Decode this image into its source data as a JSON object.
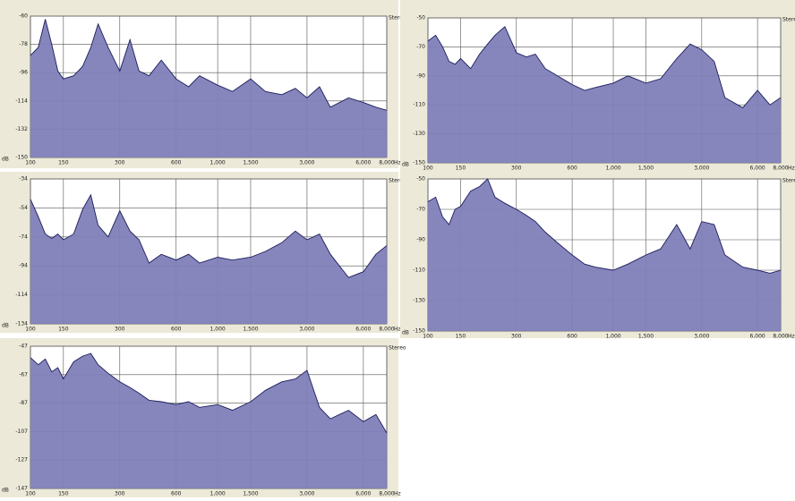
{
  "chart_data": [
    {
      "type": "area",
      "log_x": true,
      "grid": true,
      "color": "#7f80b9",
      "line_color": "#1c1c5c",
      "channel_label": "Stereo",
      "x_unit": "Hz",
      "y_unit": "dB",
      "x": [
        100,
        110,
        120,
        130,
        140,
        150,
        170,
        190,
        210,
        230,
        260,
        300,
        340,
        380,
        430,
        500,
        600,
        700,
        800,
        1000,
        1200,
        1500,
        1800,
        2200,
        2600,
        3000,
        3500,
        4000,
        5000,
        6000,
        7000,
        8000
      ],
      "values": [
        -85,
        -80,
        -62,
        -78,
        -95,
        -100,
        -98,
        -92,
        -80,
        -65,
        -80,
        -95,
        -75,
        -95,
        -98,
        -88,
        -100,
        -105,
        -98,
        -104,
        -108,
        -100,
        -108,
        -110,
        -106,
        -112,
        -105,
        -118,
        -112,
        -115,
        -118,
        -120
      ],
      "xlim": [
        100,
        8000
      ],
      "xticks": [
        100,
        150,
        300,
        600,
        {
          "value": 1000,
          "label": "1,000"
        },
        {
          "value": 1500,
          "label": "1,500"
        },
        {
          "value": 3000,
          "label": "3,000"
        },
        {
          "value": 6000,
          "label": "6,000"
        },
        {
          "value": 8000,
          "label": "8,000"
        }
      ],
      "ylim": [
        -150,
        -60
      ],
      "yticks": [
        -60,
        -78,
        -96,
        -114,
        -132,
        -150
      ]
    },
    {
      "type": "area",
      "log_x": true,
      "grid": true,
      "color": "#7f80b9",
      "line_color": "#1c1c5c",
      "channel_label": "Stereo",
      "x_unit": "Hz",
      "y_unit": "dB",
      "x": [
        100,
        110,
        120,
        130,
        140,
        150,
        170,
        190,
        210,
        230,
        260,
        300,
        340,
        380,
        430,
        500,
        600,
        700,
        800,
        1000,
        1200,
        1500,
        1800,
        2200,
        2600,
        3000,
        3500,
        4000,
        5000,
        6000,
        7000,
        8000
      ],
      "values": [
        -66,
        -62,
        -70,
        -80,
        -82,
        -78,
        -85,
        -75,
        -68,
        -62,
        -56,
        -74,
        -77,
        -75,
        -85,
        -90,
        -96,
        -100,
        -98,
        -95,
        -90,
        -95,
        -92,
        -78,
        -68,
        -72,
        -80,
        -105,
        -112,
        -100,
        -110,
        -105
      ],
      "xlim": [
        100,
        8000
      ],
      "xticks": [
        100,
        150,
        300,
        600,
        {
          "value": 1000,
          "label": "1,000"
        },
        {
          "value": 1500,
          "label": "1,500"
        },
        {
          "value": 3000,
          "label": "3,000"
        },
        {
          "value": 6000,
          "label": "6,000"
        },
        {
          "value": 8000,
          "label": "8,000"
        }
      ],
      "ylim": [
        -150,
        -50
      ],
      "yticks": [
        -50,
        -70,
        -90,
        -110,
        -130,
        -150
      ]
    },
    {
      "type": "area",
      "log_x": true,
      "grid": true,
      "color": "#7f80b9",
      "line_color": "#1c1c5c",
      "channel_label": "Stereo",
      "x_unit": "Hz",
      "y_unit": "dB",
      "x": [
        100,
        110,
        120,
        130,
        140,
        150,
        170,
        190,
        210,
        230,
        260,
        300,
        340,
        380,
        430,
        500,
        600,
        700,
        800,
        1000,
        1200,
        1500,
        1800,
        2200,
        2600,
        3000,
        3500,
        4000,
        5000,
        6000,
        7000,
        8000
      ],
      "values": [
        -48,
        -60,
        -72,
        -75,
        -72,
        -76,
        -72,
        -55,
        -45,
        -66,
        -74,
        -56,
        -70,
        -76,
        -92,
        -86,
        -90,
        -86,
        -92,
        -88,
        -90,
        -88,
        -84,
        -78,
        -70,
        -76,
        -72,
        -86,
        -102,
        -98,
        -86,
        -80
      ],
      "xlim": [
        100,
        8000
      ],
      "xticks": [
        100,
        150,
        300,
        600,
        {
          "value": 1000,
          "label": "1,000"
        },
        {
          "value": 1500,
          "label": "1,500"
        },
        {
          "value": 3000,
          "label": "3,000"
        },
        {
          "value": 6000,
          "label": "6,000"
        },
        {
          "value": 8000,
          "label": "8,000"
        }
      ],
      "ylim": [
        -134,
        -34
      ],
      "yticks": [
        -34,
        -54,
        -74,
        -94,
        -114,
        -134
      ]
    },
    {
      "type": "area",
      "log_x": true,
      "grid": true,
      "color": "#7f80b9",
      "line_color": "#1c1c5c",
      "channel_label": "Stereo",
      "x_unit": "Hz",
      "y_unit": "dB",
      "x": [
        100,
        110,
        120,
        130,
        140,
        150,
        170,
        190,
        210,
        230,
        260,
        300,
        340,
        380,
        430,
        500,
        600,
        700,
        800,
        1000,
        1200,
        1500,
        1800,
        2200,
        2600,
        3000,
        3500,
        4000,
        5000,
        6000,
        7000,
        8000
      ],
      "values": [
        -65,
        -62,
        -75,
        -80,
        -70,
        -68,
        -58,
        -55,
        -50,
        -62,
        -66,
        -70,
        -74,
        -78,
        -85,
        -92,
        -100,
        -106,
        -108,
        -110,
        -106,
        -100,
        -96,
        -80,
        -96,
        -78,
        -80,
        -100,
        -108,
        -110,
        -112,
        -110
      ],
      "xlim": [
        100,
        8000
      ],
      "xticks": [
        100,
        150,
        300,
        600,
        {
          "value": 1000,
          "label": "1,000"
        },
        {
          "value": 1500,
          "label": "1,500"
        },
        {
          "value": 3000,
          "label": "3,000"
        },
        {
          "value": 6000,
          "label": "6,000"
        },
        {
          "value": 8000,
          "label": "8,000"
        }
      ],
      "ylim": [
        -150,
        -50
      ],
      "yticks": [
        -50,
        -70,
        -90,
        -110,
        -130,
        -150
      ]
    },
    {
      "type": "area",
      "log_x": true,
      "grid": true,
      "color": "#7f80b9",
      "line_color": "#1c1c5c",
      "channel_label": "Stereo",
      "x_unit": "Hz",
      "y_unit": "dB",
      "x": [
        100,
        110,
        120,
        130,
        140,
        150,
        170,
        190,
        210,
        230,
        260,
        300,
        340,
        380,
        430,
        500,
        600,
        700,
        800,
        1000,
        1200,
        1500,
        1800,
        2200,
        2600,
        3000,
        3500,
        4000,
        5000,
        6000,
        7000,
        8000
      ],
      "values": [
        -55,
        -60,
        -56,
        -65,
        -62,
        -70,
        -58,
        -54,
        -52,
        -60,
        -66,
        -72,
        -76,
        -80,
        -85,
        -86,
        -88,
        -86,
        -90,
        -88,
        -92,
        -86,
        -78,
        -72,
        -70,
        -64,
        -90,
        -98,
        -92,
        -100,
        -95,
        -108
      ],
      "xlim": [
        100,
        8000
      ],
      "xticks": [
        100,
        150,
        300,
        600,
        {
          "value": 1000,
          "label": "1,000"
        },
        {
          "value": 1500,
          "label": "1,500"
        },
        {
          "value": 3000,
          "label": "3,000"
        },
        {
          "value": 6000,
          "label": "6,000"
        },
        {
          "value": 8000,
          "label": "8,000"
        }
      ],
      "ylim": [
        -147,
        -47
      ],
      "yticks": [
        -47,
        -67,
        -87,
        -107,
        -127,
        -147
      ]
    }
  ]
}
